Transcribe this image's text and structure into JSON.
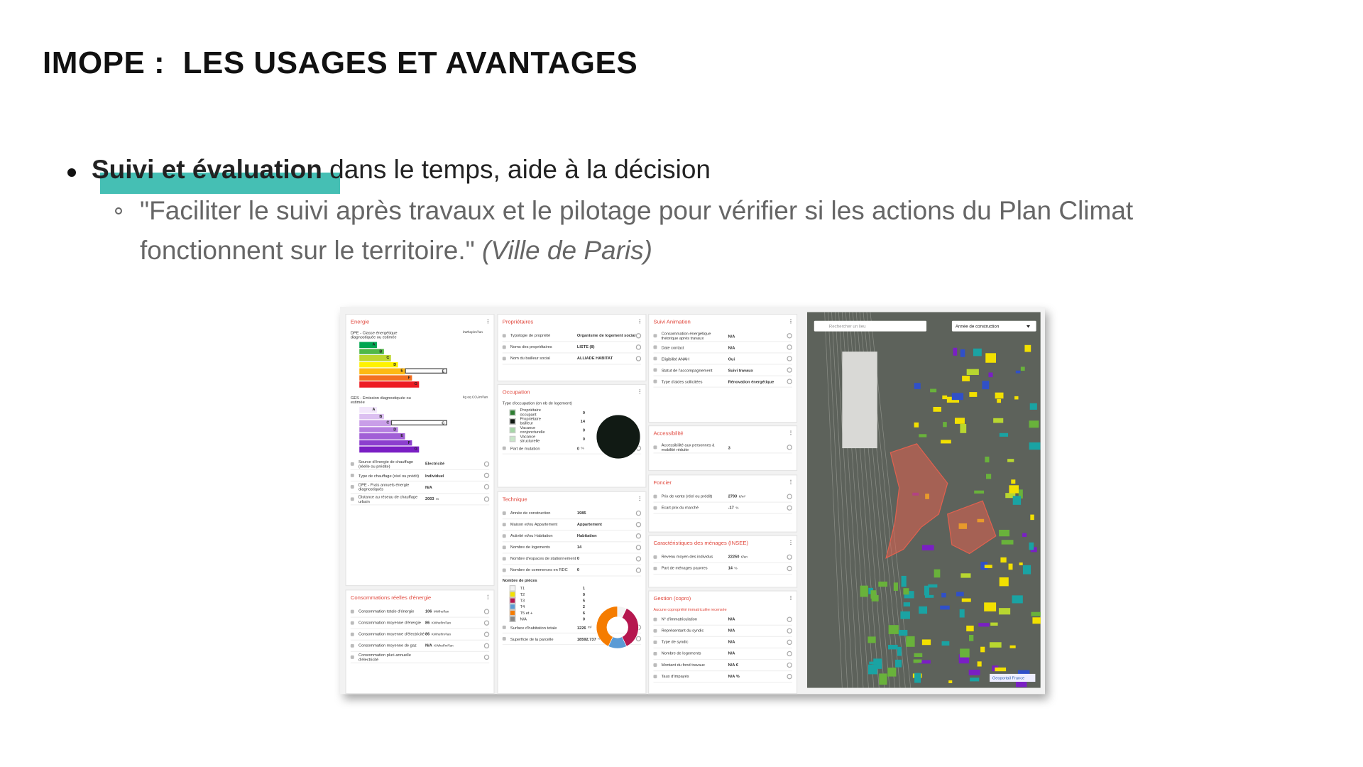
{
  "title": "IMOPE :  LES USAGES ET AVANTAGES",
  "bullet": {
    "bold": "Suivi et évaluation",
    "text": " dans le temps, aide à la décision"
  },
  "sub_bullet": {
    "quote_lines": [
      "\"Faciliter le suivi après travaux et le pilotage pour vérifier si les actions du Plan Climat",
      "fonctionnent sur le territoire.\" "
    ],
    "source": "(Ville de Paris)"
  },
  "screenshot": {
    "energie": {
      "title": "Energie",
      "dpe": {
        "label": "DPE - Classe énergétique diagnostiquée ou estimée",
        "unit": "kWhep/m²/an",
        "classes": [
          "A",
          "B",
          "C",
          "D",
          "E",
          "F",
          "G"
        ],
        "value": "E"
      },
      "ges": {
        "label": "GES - Emission diagnostiquée ou estimée",
        "unit": "kg eq CO₂/m²/an",
        "classes": [
          "A",
          "B",
          "C",
          "D",
          "E",
          "F",
          "G"
        ],
        "value": "C"
      },
      "rows": [
        {
          "label": "Source d'énergie de chauffage (réelle ou prédite)",
          "value": "Electricité"
        },
        {
          "label": "Type de chauffage (réel ou prédit)",
          "value": "Individuel"
        },
        {
          "label": "DPE - Frais annuels énergie diagnostiqués",
          "value": "N/A"
        },
        {
          "label": "Distance au réseau de chauffage urbain",
          "value": "2003",
          "unit": "m"
        }
      ]
    },
    "consommations": {
      "title": "Consommations réelles d'énergie",
      "rows": [
        {
          "label": "Consommation totale d'énergie",
          "value": "106",
          "unit": "MWhef/an"
        },
        {
          "label": "Consommation moyenne d'énergie",
          "value": "86",
          "unit": "KWhef/m²/an"
        },
        {
          "label": "Consommation moyenne d'électricité",
          "value": "86",
          "unit": "KWhef/m²/an"
        },
        {
          "label": "Consommation moyenne de gaz",
          "value": "N/A",
          "unit": "KWhef/m²/an"
        },
        {
          "label": "Consommation pluri-annuelle d'électricité"
        }
      ]
    },
    "proprietaires": {
      "title": "Propriétaires",
      "rows": [
        {
          "label": "Typologie de propriété",
          "value": "Organisme de logement social"
        },
        {
          "label": "Noms des propriétaires",
          "value": "LISTE (8)"
        },
        {
          "label": "Nom du bailleur social",
          "value": "ALLIADE HABITAT"
        }
      ]
    },
    "occupation": {
      "title": "Occupation",
      "chart_label": "Type d'occupation (en nb de logement)",
      "items": [
        {
          "label": "Propriétaire occupant",
          "value": 0,
          "color": "#2e7d32"
        },
        {
          "label": "Propriétaire bailleur",
          "value": 14,
          "color": "#111a14"
        },
        {
          "label": "Vacance conjoncturelle",
          "value": 0,
          "color": "#a5d6a7"
        },
        {
          "label": "Vacance structurelle",
          "value": 0,
          "color": "#c8e6c9"
        }
      ],
      "rows": [
        {
          "label": "Part de mutation",
          "value": "0",
          "unit": "%"
        }
      ]
    },
    "technique": {
      "title": "Technique",
      "rows": [
        {
          "label": "Année de construction",
          "value": "1985"
        },
        {
          "label": "Maison et/ou Appartement",
          "value": "Appartement"
        },
        {
          "label": "Activité et/ou Habitation",
          "value": "Habitation"
        },
        {
          "label": "Nombre de logements",
          "value": "14"
        },
        {
          "label": "Nombre d'espaces de stationnement",
          "value": "0"
        },
        {
          "label": "Nombre de commerces en RDC",
          "value": "0"
        }
      ],
      "pieces": {
        "label": "Nombre de pièces",
        "items": [
          {
            "label": "T1",
            "value": 1,
            "color": "#f3f3f3"
          },
          {
            "label": "T2",
            "value": 0,
            "color": "#f2e000"
          },
          {
            "label": "T3",
            "value": 5,
            "color": "#b5174f"
          },
          {
            "label": "T4",
            "value": 2,
            "color": "#5b9bd5"
          },
          {
            "label": "T5 et +",
            "value": 6,
            "color": "#f57c00"
          },
          {
            "label": "N/A",
            "value": 0,
            "color": "#888888"
          }
        ]
      },
      "rows_after": [
        {
          "label": "Surface d'habitation totale",
          "value": "1226",
          "unit": "m²"
        },
        {
          "label": "Superficie de la parcelle",
          "value": "18592.737",
          "unit": "m²"
        }
      ]
    },
    "suivi": {
      "title": "Suivi Animation",
      "rows": [
        {
          "label": "Consommation énergétique théorique après travaux",
          "value": "N/A"
        },
        {
          "label": "Date contact",
          "value": "N/A"
        },
        {
          "label": "Eligibilité ANAH",
          "value": "Oui"
        },
        {
          "label": "Statut de l'accompagnement",
          "value": "Suivi travaux"
        },
        {
          "label": "Type d'aides sollicitées",
          "value": "Rénovation énergétique"
        }
      ]
    },
    "accessibilite": {
      "title": "Accessibilité",
      "rows": [
        {
          "label": "Accessibilité aux personnes à mobilité réduite",
          "value": "3"
        }
      ]
    },
    "foncier": {
      "title": "Foncier",
      "rows": [
        {
          "label": "Prix de vente (réel ou prédit)",
          "value": "2793",
          "unit": "€/m²"
        },
        {
          "label": "Écart prix du marché",
          "value": "-17",
          "unit": "%"
        }
      ]
    },
    "menages": {
      "title": "Caractéristiques des ménages (INSEE)",
      "rows": [
        {
          "label": "Revenu moyen des individus",
          "value": "22250",
          "unit": "€/an"
        },
        {
          "label": "Part de ménages pauvres",
          "value": "14",
          "unit": "%"
        }
      ]
    },
    "gestion": {
      "title": "Gestion (copro)",
      "note": "Aucune copropriété immatriculée recensée",
      "rows": [
        {
          "label": "N° d'immatriculation",
          "value": "N/A"
        },
        {
          "label": "Représentant du syndic",
          "value": "N/A"
        },
        {
          "label": "Type de syndic",
          "value": "N/A"
        },
        {
          "label": "Nombre de logements",
          "value": "N/A"
        },
        {
          "label": "Montant du fond travaux",
          "value": "N/A €"
        },
        {
          "label": "Taux d'impayés",
          "value": "N/A %"
        }
      ]
    },
    "map": {
      "search": "Rechercher un lieu",
      "filter": "Année de construction",
      "attribution": "Geoportail France"
    }
  }
}
